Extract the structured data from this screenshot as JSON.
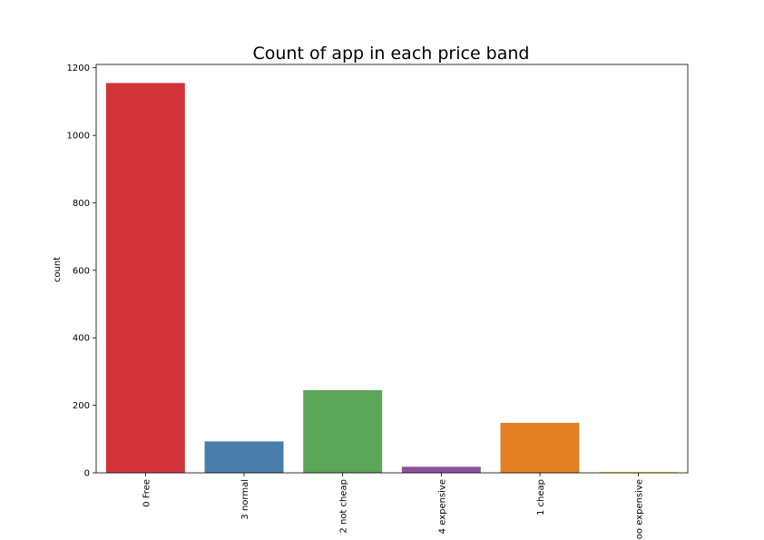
{
  "chart_data": {
    "type": "bar",
    "title": "Count of app in each price band",
    "xlabel": "",
    "ylabel": "count",
    "categories": [
      "0 Free",
      "3 normal",
      "2 not cheap",
      "4 expensive",
      "1 cheap",
      "oo expensive"
    ],
    "values": [
      1155,
      93,
      245,
      18,
      148,
      3
    ],
    "colors": [
      "#d03438",
      "#4a7cac",
      "#5ba557",
      "#8d4f9e",
      "#e17f22",
      "#e8e845"
    ],
    "ylim": [
      0,
      1210
    ],
    "yticks": [
      0,
      200,
      400,
      600,
      800,
      1000,
      1200
    ],
    "grid": false,
    "legend": "none"
  }
}
